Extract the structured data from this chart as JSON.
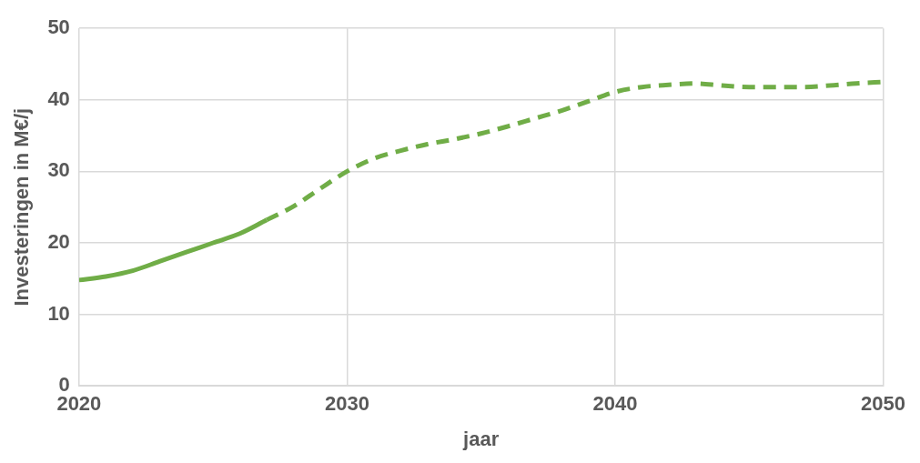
{
  "chart_data": {
    "type": "line",
    "xlabel": "jaar",
    "ylabel": "Investeringen in M€/j",
    "xlim": [
      2020,
      2050
    ],
    "xticks": [
      2020,
      2030,
      2040,
      2050
    ],
    "ylim": [
      0,
      50
    ],
    "yticks": [
      0,
      10,
      20,
      30,
      40,
      50
    ],
    "grid": true,
    "legend": false,
    "marker": "none",
    "series": [
      {
        "color": "#70ad47",
        "line_style": "solid",
        "x": [
          2020,
          2021,
          2022,
          2023,
          2024,
          2025,
          2026,
          2027
        ],
        "values": [
          14.8,
          15.3,
          16.1,
          17.4,
          18.7,
          20.0,
          21.3,
          23.2
        ]
      },
      {
        "color": "#70ad47",
        "line_style": "dashed",
        "x": [
          2027,
          2028,
          2029,
          2030,
          2031,
          2032,
          2033,
          2034,
          2035,
          2036,
          2037,
          2038,
          2039,
          2040,
          2041,
          2042,
          2043,
          2044,
          2045,
          2046,
          2047,
          2048,
          2049,
          2050
        ],
        "values": [
          23.2,
          25.1,
          27.6,
          30.0,
          31.8,
          32.9,
          33.8,
          34.5,
          35.3,
          36.3,
          37.4,
          38.5,
          39.8,
          41.1,
          41.8,
          42.1,
          42.3,
          42.0,
          41.8,
          41.8,
          41.8,
          42.0,
          42.3,
          42.5
        ]
      }
    ]
  }
}
